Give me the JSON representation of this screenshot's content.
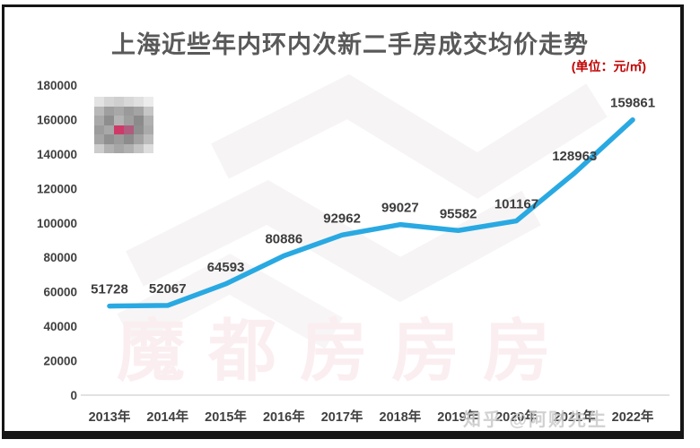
{
  "title": "上海近些年内环内次新二手房成交均价走势",
  "unit_label": "(单位：元/㎡)",
  "watermarks": {
    "brand_text": "魔都房房房",
    "zhihu": "知乎 @阿财先生"
  },
  "colors": {
    "line": "#29a9e2",
    "title": "#595959",
    "unit": "#c00000",
    "data_label": "#3d3d3d",
    "tick_label": "#404040",
    "axis_line": "#d9d9d9",
    "chevron_watermark": "#f6f4f5",
    "brand_watermark": "#fbeef0",
    "zhihu_watermark": "#c9c9c9"
  },
  "mosaic_rows": [
    [
      "#e3e3e3",
      "#d5d5d5",
      "#cfcfcf",
      "#d8d8d8",
      "#e0e0e0",
      "#ececec"
    ],
    [
      "#b8b8b8",
      "#9f9f9f",
      "#a8a8a8",
      "#9a9a9a",
      "#a4a4a4",
      "#c6c6c6"
    ],
    [
      "#a9a9a9",
      "#8e8e8e",
      "#b4b4b4",
      "#9f9f9f",
      "#8b8b8b",
      "#b0b0b0"
    ],
    [
      "#9c9c9c",
      "#a8a8a8",
      "#ce3a68",
      "#b05c7e",
      "#8f8f8f",
      "#aaaaaa"
    ],
    [
      "#a5a5a5",
      "#909090",
      "#9b9b9b",
      "#8c8c8c",
      "#a2a2a2",
      "#bcbcbc"
    ],
    [
      "#cccccc",
      "#b2b2b2",
      "#a6a6a6",
      "#b0b0b0",
      "#c3c3c3",
      "#dddddd"
    ]
  ],
  "chart_data": {
    "type": "line",
    "title": "上海近些年内环内次新二手房成交均价走势",
    "categories": [
      "2013年",
      "2014年",
      "2015年",
      "2016年",
      "2017年",
      "2018年",
      "2019年",
      "2020年",
      "2021年",
      "2022年"
    ],
    "values": [
      51728,
      52067,
      64593,
      80886,
      92962,
      99027,
      95582,
      101167,
      128963,
      159861
    ],
    "xlabel": "",
    "ylabel": "元/㎡",
    "ylim": [
      0,
      180000
    ],
    "ytick_step": 20000,
    "yticks": [
      0,
      20000,
      40000,
      60000,
      80000,
      100000,
      120000,
      140000,
      160000,
      180000
    ],
    "grid": false,
    "legend_position": "none",
    "data_labels": true
  }
}
